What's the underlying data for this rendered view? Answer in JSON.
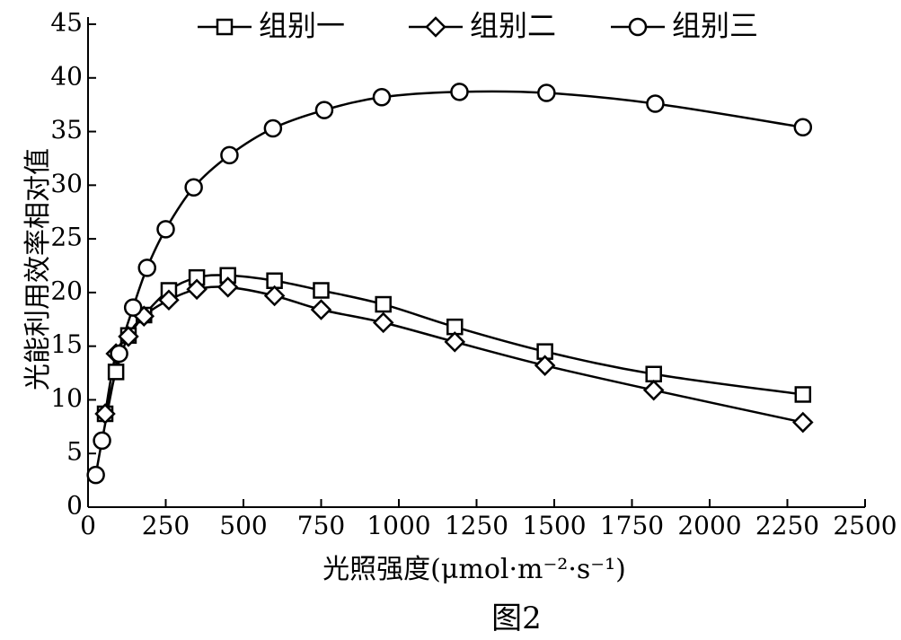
{
  "caption": "图2",
  "chart_data": {
    "type": "line",
    "title": "",
    "xlabel": "光照强度(μmol·m⁻²·s⁻¹)",
    "ylabel": "光能利用效率相对值",
    "xlim": [
      0,
      2500
    ],
    "ylim": [
      0,
      45
    ],
    "xticks": [
      0,
      250,
      500,
      750,
      1000,
      1250,
      1500,
      1750,
      2000,
      2250,
      2500
    ],
    "yticks": [
      0,
      5,
      10,
      15,
      20,
      25,
      30,
      35,
      40,
      45
    ],
    "grid": false,
    "legend_position": "top",
    "series": [
      {
        "name": "组别一",
        "marker": "square",
        "x": [
          55,
          90,
          130,
          180,
          260,
          350,
          450,
          600,
          750,
          950,
          1180,
          1470,
          1820,
          2300
        ],
        "y": [
          8.7,
          12.6,
          16.0,
          17.9,
          20.2,
          21.4,
          21.6,
          21.1,
          20.2,
          18.9,
          16.8,
          14.5,
          12.4,
          10.5
        ]
      },
      {
        "name": "组别二",
        "marker": "diamond",
        "x": [
          55,
          90,
          130,
          180,
          260,
          350,
          450,
          600,
          750,
          950,
          1180,
          1470,
          1820,
          2300
        ],
        "y": [
          8.7,
          14.3,
          15.9,
          17.8,
          19.3,
          20.3,
          20.5,
          19.7,
          18.4,
          17.2,
          15.4,
          13.2,
          10.9,
          7.9
        ]
      },
      {
        "name": "组别三",
        "marker": "circle",
        "x": [
          25,
          45,
          100,
          145,
          190,
          250,
          340,
          455,
          595,
          760,
          945,
          1195,
          1475,
          1825,
          2300
        ],
        "y": [
          3.0,
          6.2,
          14.3,
          18.6,
          22.3,
          25.9,
          29.8,
          32.8,
          35.3,
          37.0,
          38.2,
          38.7,
          38.6,
          37.6,
          35.4
        ]
      }
    ]
  }
}
